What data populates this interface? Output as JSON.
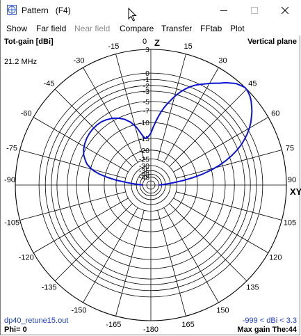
{
  "window": {
    "title": "Pattern   (F4)",
    "minimize_icon": "minimize-icon",
    "maximize_icon": "maximize-icon",
    "close_icon": "close-icon"
  },
  "menu": {
    "items": [
      {
        "label": "Show",
        "enabled": true
      },
      {
        "label": "Far field",
        "enabled": true
      },
      {
        "label": "Near field",
        "enabled": false
      },
      {
        "label": "Compare",
        "enabled": true
      },
      {
        "label": "Transfer",
        "enabled": true
      },
      {
        "label": "FFtab",
        "enabled": true
      },
      {
        "label": "Plot",
        "enabled": true
      }
    ]
  },
  "plot": {
    "top_left": "Tot-gain [dBi]",
    "top_right": "Vertical plane",
    "frequency": "21.2 MHz",
    "bottom_left_file": "dp40_retune15.out",
    "bottom_left_phi": "Phi= 0",
    "bottom_right_range": "-999 < dBi < 3.3",
    "bottom_right_maxgain": "Max gain The:44",
    "z_axis_label": "Z",
    "xy_axis_label": "XY",
    "colors": {
      "trace": "#0a14d2",
      "grid": "#000000",
      "info_text": "#1f3fbf"
    }
  },
  "chart_data": {
    "type": "polar",
    "angle_labels": [
      "0",
      "15",
      "30",
      "45",
      "60",
      "75",
      "90",
      "105",
      "120",
      "135",
      "150",
      "165",
      "-180",
      "-165",
      "-150",
      "-135",
      "-120",
      "-105",
      "-90",
      "-75",
      "-60",
      "-45",
      "-30",
      "-15"
    ],
    "radial_labels": [
      "3",
      "0",
      "-1",
      "-2",
      "-3",
      "-5",
      "-7",
      "-10",
      "-15",
      "-20",
      "-25",
      "-30",
      "-35",
      "-40",
      "-45"
    ],
    "radial_label_db": [
      3.3,
      0,
      -1,
      -2,
      -3,
      -5,
      -7,
      -10,
      -15,
      -20,
      -25,
      -30,
      -35,
      -40,
      -45
    ],
    "series": [
      {
        "theta_deg": [
          -90,
          -88,
          -86,
          -84,
          -82,
          -80,
          -78,
          -76,
          -74,
          -72,
          -70,
          -66,
          -62,
          -58,
          -54,
          -50,
          -46,
          -42,
          -38,
          -34,
          -30,
          -26,
          -22,
          -18,
          -14,
          -10,
          -8,
          -6,
          -4,
          -2,
          0,
          2,
          4,
          6,
          8,
          10,
          12,
          14,
          16,
          18,
          20,
          22,
          24,
          26,
          28,
          30,
          32,
          34,
          36,
          38,
          40,
          42,
          44,
          46,
          48,
          50,
          52,
          54,
          56,
          58,
          60,
          62,
          64,
          66,
          68,
          70,
          72,
          74,
          76,
          78,
          80,
          82,
          84,
          86,
          88,
          90
        ],
        "gain_dbi": [
          -45,
          -40,
          -33,
          -26,
          -20,
          -16,
          -13,
          -11,
          -9.8,
          -8.8,
          -8.2,
          -7.2,
          -6.6,
          -6.2,
          -5.9,
          -5.7,
          -5.6,
          -5.6,
          -5.7,
          -6.0,
          -6.4,
          -7.0,
          -7.8,
          -9.0,
          -10.8,
          -13.5,
          -14.5,
          -14.9,
          -14.6,
          -14.0,
          -13.2,
          -11.6,
          -10.0,
          -8.5,
          -7.1,
          -5.9,
          -4.9,
          -3.9,
          -3.0,
          -2.2,
          -1.5,
          -0.9,
          -0.4,
          0.0,
          0.4,
          0.8,
          1.2,
          1.6,
          2.1,
          2.5,
          2.9,
          3.1,
          3.3,
          3.2,
          3.0,
          2.7,
          2.3,
          1.9,
          1.4,
          0.9,
          0.3,
          -0.4,
          -1.2,
          -2.1,
          -3.2,
          -4.5,
          -6.0,
          -7.8,
          -10.0,
          -12.8,
          -16.5,
          -21,
          -27,
          -33,
          -40,
          -45
        ]
      }
    ]
  }
}
